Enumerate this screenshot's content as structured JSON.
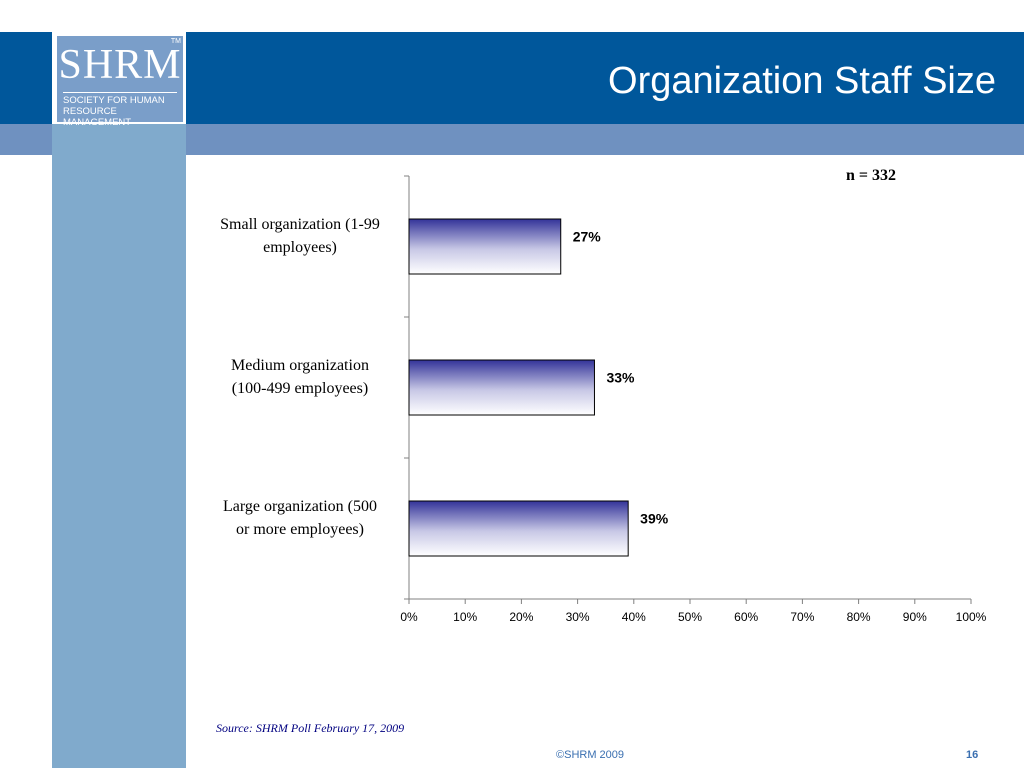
{
  "slide": {
    "title": "Organization Staff Size",
    "logo": {
      "wordmark": "SHRM",
      "trademark": "TM",
      "tagline": "SOCIETY FOR HUMAN\nRESOURCE MANAGEMENT"
    },
    "source": "Source: SHRM Poll February 17, 2009",
    "footer": {
      "copyright": "©SHRM 2009",
      "page_number": "16"
    }
  },
  "colors": {
    "header_band": "#00579b",
    "sub_band": "#6f91c0",
    "left_strip": "#80aacc",
    "bar_top": "#333399",
    "bar_bottom": "#ffffff",
    "footer_text": "#3a6fb0",
    "source_text": "#000080"
  },
  "chart_data": {
    "type": "bar",
    "orientation": "horizontal",
    "annotation": "n = 332",
    "categories": [
      "Small organization (1-99 employees)",
      "Medium organization (100-499 employees)",
      "Large organization (500 or more employees)"
    ],
    "category_lines": [
      [
        "Small organization (1-99",
        "employees)"
      ],
      [
        "Medium organization",
        "(100-499 employees)"
      ],
      [
        "Large organization (500",
        "or more employees)"
      ]
    ],
    "values": [
      27,
      33,
      39
    ],
    "data_labels": [
      "27%",
      "33%",
      "39%"
    ],
    "xlim": [
      0,
      100
    ],
    "x_ticks": [
      0,
      10,
      20,
      30,
      40,
      50,
      60,
      70,
      80,
      90,
      100
    ],
    "x_tick_labels": [
      "0%",
      "10%",
      "20%",
      "30%",
      "40%",
      "50%",
      "60%",
      "70%",
      "80%",
      "90%",
      "100%"
    ],
    "grid": false,
    "legend": "none"
  }
}
